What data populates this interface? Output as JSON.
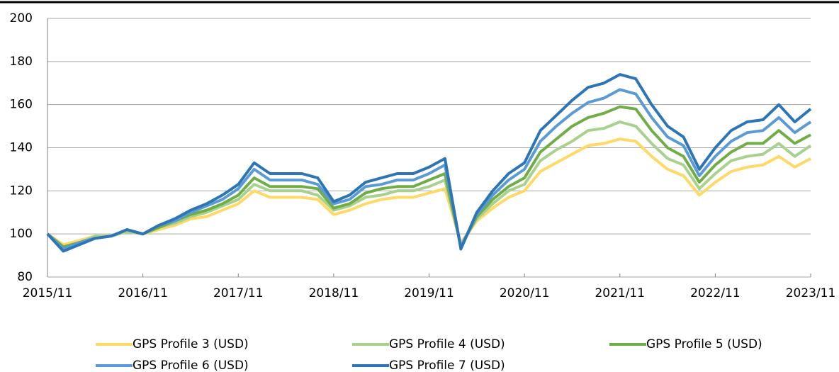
{
  "chart_data": {
    "type": "line",
    "x": [
      "2015/11",
      "2016/01",
      "2016/03",
      "2016/05",
      "2016/07",
      "2016/09",
      "2016/11",
      "2017/01",
      "2017/03",
      "2017/05",
      "2017/07",
      "2017/09",
      "2017/11",
      "2018/01",
      "2018/03",
      "2018/05",
      "2018/07",
      "2018/09",
      "2018/11",
      "2019/01",
      "2019/03",
      "2019/05",
      "2019/07",
      "2019/09",
      "2019/11",
      "2020/01",
      "2020/03",
      "2020/05",
      "2020/07",
      "2020/09",
      "2020/11",
      "2021/01",
      "2021/03",
      "2021/05",
      "2021/07",
      "2021/09",
      "2021/11",
      "2022/01",
      "2022/03",
      "2022/05",
      "2022/07",
      "2022/09",
      "2022/11",
      "2023/01",
      "2023/03",
      "2023/05",
      "2023/07",
      "2023/09",
      "2023/11"
    ],
    "xlim": [
      "2015/11",
      "2023/11"
    ],
    "xticks": [
      "2015/11",
      "2016/11",
      "2017/11",
      "2018/11",
      "2019/11",
      "2020/11",
      "2021/11",
      "2022/11",
      "2023/11"
    ],
    "ylim": [
      80,
      200
    ],
    "yticks": [
      80,
      100,
      120,
      140,
      160,
      180,
      200
    ],
    "grid": true,
    "series": [
      {
        "name": "GPS Profile 3 (USD)",
        "color": "#FFD966",
        "values": [
          100,
          95,
          97,
          99,
          99,
          101,
          100,
          102,
          104,
          107,
          108,
          111,
          114,
          120,
          117,
          117,
          117,
          116,
          109,
          111,
          114,
          116,
          117,
          117,
          119,
          121,
          96,
          106,
          112,
          117,
          120,
          129,
          133,
          137,
          141,
          142,
          144,
          143,
          136,
          130,
          127,
          118,
          124,
          129,
          131,
          132,
          136,
          131,
          135
        ]
      },
      {
        "name": "GPS Profile 4 (USD)",
        "color": "#A9D18E",
        "values": [
          100,
          94,
          96,
          99,
          99,
          101,
          100,
          103,
          105,
          108,
          110,
          113,
          116,
          123,
          120,
          120,
          120,
          118,
          111,
          113,
          117,
          118,
          120,
          120,
          122,
          125,
          95,
          107,
          114,
          120,
          123,
          134,
          139,
          143,
          148,
          149,
          152,
          150,
          142,
          135,
          132,
          121,
          128,
          134,
          136,
          137,
          142,
          136,
          141
        ]
      },
      {
        "name": "GPS Profile 5 (USD)",
        "color": "#70AD47",
        "values": [
          100,
          94,
          96,
          98,
          99,
          102,
          100,
          103,
          106,
          109,
          111,
          114,
          118,
          126,
          122,
          122,
          122,
          121,
          112,
          114,
          119,
          121,
          122,
          122,
          125,
          128,
          94,
          108,
          116,
          122,
          126,
          138,
          144,
          150,
          154,
          156,
          159,
          158,
          148,
          140,
          136,
          124,
          132,
          138,
          142,
          142,
          148,
          142,
          146
        ]
      },
      {
        "name": "GPS Profile 6 (USD)",
        "color": "#5B9BD5",
        "values": [
          100,
          93,
          96,
          98,
          99,
          102,
          100,
          104,
          106,
          110,
          113,
          116,
          121,
          130,
          125,
          125,
          125,
          123,
          114,
          116,
          122,
          123,
          125,
          125,
          128,
          132,
          94,
          109,
          118,
          125,
          130,
          143,
          150,
          156,
          161,
          163,
          167,
          165,
          154,
          145,
          141,
          127,
          136,
          143,
          147,
          148,
          154,
          147,
          152
        ]
      },
      {
        "name": "GPS Profile 7 (USD)",
        "color": "#2E75B6",
        "values": [
          100,
          92,
          95,
          98,
          99,
          102,
          100,
          104,
          107,
          111,
          114,
          118,
          123,
          133,
          128,
          128,
          128,
          126,
          115,
          118,
          124,
          126,
          128,
          128,
          131,
          135,
          93,
          110,
          120,
          128,
          133,
          148,
          155,
          162,
          168,
          170,
          174,
          172,
          160,
          150,
          145,
          130,
          140,
          148,
          152,
          153,
          160,
          152,
          158
        ]
      }
    ]
  }
}
